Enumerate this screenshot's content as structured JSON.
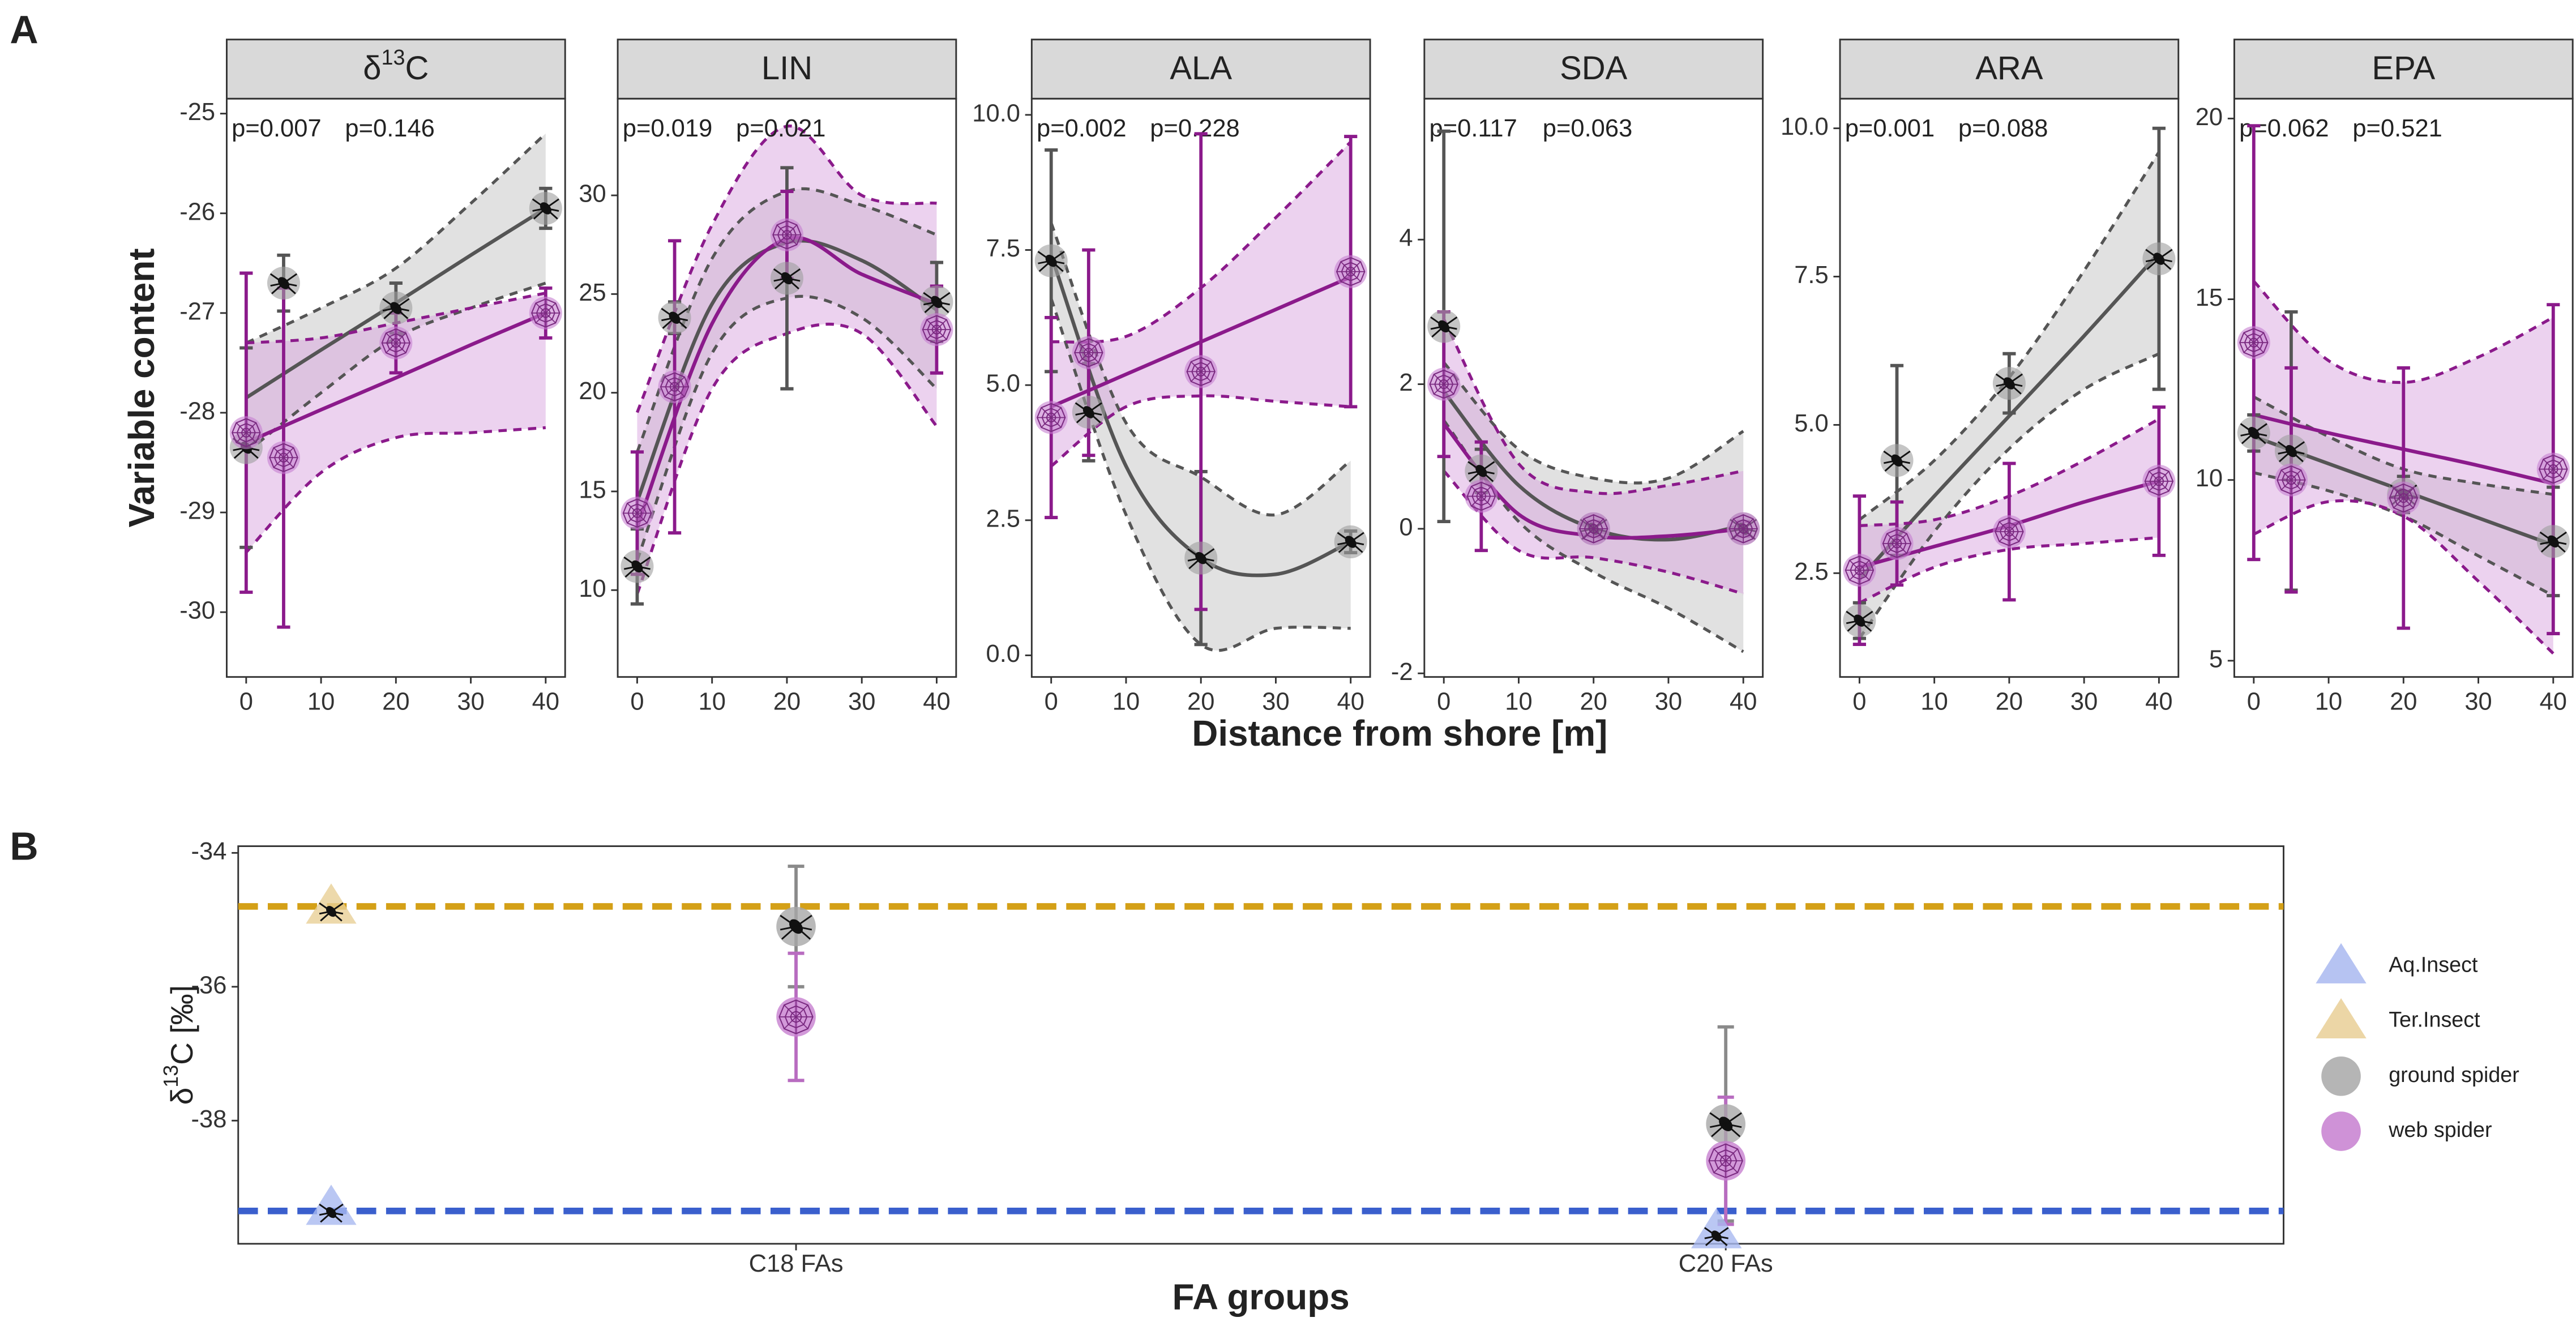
{
  "panel_labels": [
    "A",
    "B"
  ],
  "shared": {
    "ylabel": "Variable content",
    "xlabel": "Distance from shore [m]"
  },
  "chart_data": [
    {
      "type": "line",
      "title": [
        "δ",
        "13",
        "C"
      ],
      "xlim": [
        -2.6,
        42.6
      ],
      "xticks": [
        0,
        10,
        20,
        30,
        40
      ],
      "ylim": [
        -30.65,
        -24.85
      ],
      "yticks": [
        -25,
        -26,
        -27,
        -28,
        -29,
        -30
      ],
      "fit_x": [
        0,
        10,
        20,
        30,
        40
      ],
      "series": [
        {
          "p_label": "p=0.007",
          "color": "#555555",
          "fill": "#c4c4c4",
          "marker": "#9e9e9e",
          "icon": "spider",
          "x": [
            0,
            5,
            20,
            40
          ],
          "values": [
            -28.35,
            -26.7,
            -26.95,
            -25.95
          ],
          "errors": [
            1.0,
            0.28,
            0.25,
            0.2
          ],
          "fit": [
            -27.85,
            -27.37,
            -26.9,
            -26.42,
            -25.95
          ],
          "fit_lower": [
            -28.4,
            -27.8,
            -27.25,
            -26.95,
            -26.7
          ],
          "fit_upper": [
            -27.3,
            -26.95,
            -26.55,
            -25.9,
            -25.2
          ]
        },
        {
          "p_label": "p=0.146",
          "color": "#8b1a8b",
          "fill": "#d9a6e0",
          "marker": "#c77fd0",
          "icon": "web",
          "x": [
            0,
            5,
            20,
            40
          ],
          "values": [
            -28.2,
            -28.45,
            -27.3,
            -27.0
          ],
          "errors": [
            1.6,
            1.7,
            0.3,
            0.25
          ],
          "fit": [
            -28.3,
            -27.97,
            -27.65,
            -27.32,
            -27.0
          ],
          "fit_lower": [
            -29.4,
            -28.6,
            -28.25,
            -28.2,
            -28.15
          ],
          "fit_upper": [
            -27.3,
            -27.25,
            -27.1,
            -26.95,
            -26.8
          ]
        }
      ]
    },
    {
      "type": "line",
      "title": "LIN",
      "xlim": [
        -2.6,
        42.6
      ],
      "xticks": [
        0,
        10,
        20,
        30,
        40
      ],
      "ylim": [
        5.6,
        34.9
      ],
      "yticks": [
        10,
        15,
        20,
        25,
        30
      ],
      "fit_x": [
        0,
        10,
        20,
        30,
        40
      ],
      "series": [
        {
          "p_label": "p=0.019",
          "color": "#555555",
          "fill": "#c4c4c4",
          "marker": "#9e9e9e",
          "icon": "spider",
          "x": [
            0,
            5,
            20,
            40
          ],
          "values": [
            11.2,
            23.8,
            25.8,
            24.6
          ],
          "errors": [
            1.9,
            0.8,
            5.6,
            2.0
          ],
          "fit": [
            14.5,
            24.5,
            27.6,
            26.7,
            24.2
          ],
          "fit_lower": [
            11.5,
            22.0,
            24.8,
            23.8,
            20.2
          ],
          "fit_upper": [
            17.0,
            26.8,
            30.2,
            29.5,
            28.0
          ]
        },
        {
          "p_label": "p=0.021",
          "color": "#8b1a8b",
          "fill": "#d9a6e0",
          "marker": "#c77fd0",
          "icon": "web",
          "x": [
            0,
            5,
            20,
            40
          ],
          "values": [
            13.9,
            20.3,
            28.0,
            23.2
          ],
          "errors": [
            3.1,
            7.4,
            2.2,
            2.2
          ],
          "fit": [
            13.2,
            23.5,
            27.8,
            26.0,
            24.5
          ],
          "fit_lower": [
            9.8,
            20.2,
            23.0,
            23.0,
            18.3
          ],
          "fit_upper": [
            19.0,
            28.5,
            33.5,
            30.0,
            29.6
          ]
        }
      ]
    },
    {
      "type": "line",
      "title": "ALA",
      "xlim": [
        -2.6,
        42.6
      ],
      "xticks": [
        0,
        10,
        20,
        30,
        40
      ],
      "ylim": [
        -0.4,
        10.3
      ],
      "yticks": [
        {
          "value": 0,
          "label": "0.0"
        },
        2.5,
        {
          "value": 5,
          "label": "5.0"
        },
        7.5,
        {
          "value": 10,
          "label": "10.0"
        }
      ],
      "fit_x": [
        0,
        10,
        20,
        30,
        40
      ],
      "series": [
        {
          "p_label": "p=0.002",
          "color": "#555555",
          "fill": "#c4c4c4",
          "marker": "#9e9e9e",
          "icon": "spider",
          "x": [
            0,
            5,
            20,
            40
          ],
          "values": [
            7.3,
            4.5,
            1.8,
            2.1
          ],
          "errors": [
            2.05,
            0.9,
            1.6,
            0.2
          ],
          "fit": [
            7.4,
            3.5,
            1.8,
            1.5,
            2.1
          ],
          "fit_lower": [
            6.6,
            2.6,
            0.2,
            0.5,
            0.5
          ],
          "fit_upper": [
            8.0,
            4.3,
            3.3,
            2.6,
            3.6
          ]
        },
        {
          "p_label": "p=0.228",
          "color": "#8b1a8b",
          "fill": "#d9a6e0",
          "marker": "#c77fd0",
          "icon": "web",
          "x": [
            0,
            5,
            20,
            40
          ],
          "values": [
            4.4,
            5.6,
            5.25,
            7.1
          ],
          "errors": [
            1.85,
            1.9,
            4.4,
            2.5
          ],
          "fit": [
            4.6,
            5.2,
            5.8,
            6.4,
            7.0
          ],
          "fit_lower": [
            3.5,
            4.6,
            4.8,
            4.7,
            4.6
          ],
          "fit_upper": [
            5.8,
            5.9,
            6.8,
            8.1,
            9.5
          ]
        }
      ]
    },
    {
      "type": "line",
      "title": "SDA",
      "xlim": [
        -2.6,
        42.6
      ],
      "xticks": [
        0,
        10,
        20,
        30,
        40
      ],
      "ylim": [
        -2.05,
        5.95
      ],
      "yticks": [
        -2,
        0,
        2,
        4
      ],
      "fit_x": [
        0,
        10,
        20,
        30,
        40
      ],
      "series": [
        {
          "p_label": "p=0.117",
          "color": "#555555",
          "fill": "#c4c4c4",
          "marker": "#9e9e9e",
          "icon": "spider",
          "x": [
            0,
            5,
            20,
            40
          ],
          "values": [
            2.8,
            0.8,
            0.0,
            0.0
          ],
          "errors": [
            2.7,
            0.3,
            0.1,
            0.1
          ],
          "fit": [
            1.9,
            0.6,
            0.0,
            -0.15,
            0.05
          ],
          "fit_lower": [
            1.5,
            0.1,
            -0.6,
            -1.1,
            -1.7
          ],
          "fit_upper": [
            2.3,
            1.1,
            0.7,
            0.7,
            1.35
          ]
        },
        {
          "p_label": "p=0.063",
          "color": "#8b1a8b",
          "fill": "#d9a6e0",
          "marker": "#c77fd0",
          "icon": "web",
          "x": [
            0,
            5,
            20,
            40
          ],
          "values": [
            2.0,
            0.45,
            0.0,
            0.0
          ],
          "errors": [
            1.0,
            0.75,
            0.1,
            0.1
          ],
          "fit": [
            1.45,
            0.2,
            -0.1,
            -0.1,
            0.0
          ],
          "fit_lower": [
            0.8,
            -0.3,
            -0.4,
            -0.6,
            -0.9
          ],
          "fit_upper": [
            2.9,
            0.9,
            0.5,
            0.6,
            0.8
          ]
        }
      ]
    },
    {
      "type": "line",
      "title": "ARA",
      "xlim": [
        -2.6,
        42.6
      ],
      "xticks": [
        0,
        10,
        20,
        30,
        40
      ],
      "ylim": [
        0.75,
        10.5
      ],
      "yticks": [
        2.5,
        {
          "value": 5,
          "label": "5.0"
        },
        7.5,
        {
          "value": 10,
          "label": "10.0"
        }
      ],
      "fit_x": [
        0,
        10,
        20,
        30,
        40
      ],
      "series": [
        {
          "p_label": "p=0.001",
          "color": "#555555",
          "fill": "#c4c4c4",
          "marker": "#9e9e9e",
          "icon": "spider",
          "x": [
            0,
            5,
            20,
            40
          ],
          "values": [
            1.7,
            4.4,
            5.7,
            7.8
          ],
          "errors": [
            0.3,
            1.6,
            0.5,
            2.2
          ],
          "fit": [
            2.4,
            3.8,
            5.15,
            6.5,
            7.9
          ],
          "fit_lower": [
            1.4,
            3.2,
            4.6,
            5.6,
            6.2
          ],
          "fit_upper": [
            3.4,
            4.4,
            5.8,
            7.6,
            9.6
          ]
        },
        {
          "p_label": "p=0.088",
          "color": "#8b1a8b",
          "fill": "#d9a6e0",
          "marker": "#c77fd0",
          "icon": "web",
          "x": [
            0,
            5,
            20,
            40
          ],
          "values": [
            2.55,
            3.0,
            3.2,
            4.05
          ],
          "errors": [
            1.25,
            0.7,
            1.15,
            1.25
          ],
          "fit": [
            2.6,
            2.95,
            3.3,
            3.7,
            4.05
          ],
          "fit_lower": [
            2.0,
            2.6,
            2.9,
            3.0,
            3.1
          ],
          "fit_upper": [
            3.3,
            3.4,
            3.8,
            4.4,
            5.1
          ]
        }
      ]
    },
    {
      "type": "line",
      "title": "EPA",
      "xlim": [
        -2.6,
        42.6
      ],
      "xticks": [
        0,
        10,
        20,
        30,
        40
      ],
      "ylim": [
        4.55,
        20.55
      ],
      "yticks": [
        5,
        10,
        15,
        20
      ],
      "fit_x": [
        0,
        10,
        20,
        30,
        40
      ],
      "series": [
        {
          "p_label": "p=0.062",
          "color": "#555555",
          "fill": "#c4c4c4",
          "marker": "#9e9e9e",
          "icon": "spider",
          "x": [
            0,
            5,
            20,
            40
          ],
          "values": [
            11.3,
            10.8,
            9.6,
            8.3
          ],
          "errors": [
            0.5,
            3.85,
            0.5,
            1.5
          ],
          "fit": [
            11.2,
            10.45,
            9.7,
            8.95,
            8.2
          ],
          "fit_lower": [
            10.2,
            9.7,
            9.0,
            7.9,
            6.8
          ],
          "fit_upper": [
            12.3,
            11.2,
            10.3,
            9.9,
            9.6
          ]
        },
        {
          "p_label": "p=0.521",
          "color": "#8b1a8b",
          "fill": "#d9a6e0",
          "marker": "#c77fd0",
          "icon": "web",
          "x": [
            0,
            5,
            20,
            40
          ],
          "values": [
            13.8,
            10.0,
            9.5,
            10.3
          ],
          "errors": [
            6.0,
            3.1,
            3.6,
            4.55
          ],
          "fit": [
            11.8,
            11.3,
            10.85,
            10.4,
            9.9
          ],
          "fit_lower": [
            8.5,
            9.4,
            9.0,
            7.2,
            5.2
          ],
          "fit_upper": [
            15.5,
            13.3,
            12.7,
            13.4,
            14.5
          ]
        }
      ]
    },
    {
      "type": "scatter",
      "xlabel": "FA groups",
      "ylabel": [
        "δ",
        "13",
        "C [‰]"
      ],
      "categories": [
        "C18 FAs",
        "C20 FAs"
      ],
      "xlim": [
        -0.6,
        1.6
      ],
      "ylim": [
        -39.84,
        -33.9
      ],
      "yticks": [
        -34,
        -36,
        -38
      ],
      "hlines": [
        {
          "value": -34.8,
          "color": "#d4a017"
        },
        {
          "value": -39.35,
          "color": "#3a5fcd"
        }
      ],
      "series": [
        {
          "name": "Aq.Insect",
          "shape": "triangle",
          "color": "#6f8fe0",
          "fill": "#a9b9f0",
          "x": [
            -0.5,
            0.99
          ],
          "values": [
            -39.3,
            -39.65
          ]
        },
        {
          "name": "Ter.Insect",
          "shape": "triangle",
          "color": "#c9a860",
          "fill": "#e9cf96",
          "x": [
            -0.5
          ],
          "values": [
            -34.8
          ]
        },
        {
          "name": "ground spider",
          "shape": "circle",
          "icon": "spider",
          "color": "#8a8a8a",
          "fill": "#a8a8a8",
          "x": [
            0,
            1
          ],
          "values": [
            -35.1,
            -38.05
          ],
          "errors": [
            0.9,
            1.45
          ]
        },
        {
          "name": "web spider",
          "shape": "circle",
          "icon": "web",
          "color": "#b86cc0",
          "fill": "#c77fd0",
          "x": [
            0,
            1
          ],
          "values": [
            -36.45,
            -38.6
          ],
          "errors": [
            0.95,
            0.95
          ]
        }
      ]
    }
  ]
}
